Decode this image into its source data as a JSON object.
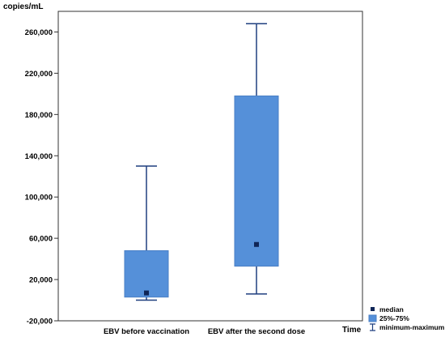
{
  "chart_data": {
    "type": "boxplot",
    "title": "",
    "ylabel": "copies/mL",
    "xlabel": "Time",
    "ylim": [
      -20000,
      280000
    ],
    "yticks": [
      -20000,
      20000,
      60000,
      100000,
      140000,
      180000,
      220000,
      260000
    ],
    "ytick_labels": [
      "-20,000",
      "20,000",
      "60,000",
      "100,000",
      "140,000",
      "180,000",
      "220,000",
      "260,000"
    ],
    "categories": [
      "EBV before vaccination",
      "EBV after the second dose"
    ],
    "boxes": [
      {
        "category": "EBV before vaccination",
        "min": 0,
        "q1": 3000,
        "median": 7000,
        "q3": 48000,
        "max": 130000
      },
      {
        "category": "EBV after the second dose",
        "min": 6000,
        "q1": 33000,
        "median": 54000,
        "q3": 198000,
        "max": 268000
      }
    ],
    "legend": {
      "position": "bottom-right",
      "items": [
        {
          "label": "median",
          "symbol": "square"
        },
        {
          "label": "25%-75%",
          "symbol": "box"
        },
        {
          "label": "minimum-maximum",
          "symbol": "whisker"
        }
      ]
    },
    "colors": {
      "box_fill": "#5590d9",
      "box_stroke": "#4a7fc5",
      "whisker": "#1f3f7f",
      "median": "#0f2557"
    }
  }
}
